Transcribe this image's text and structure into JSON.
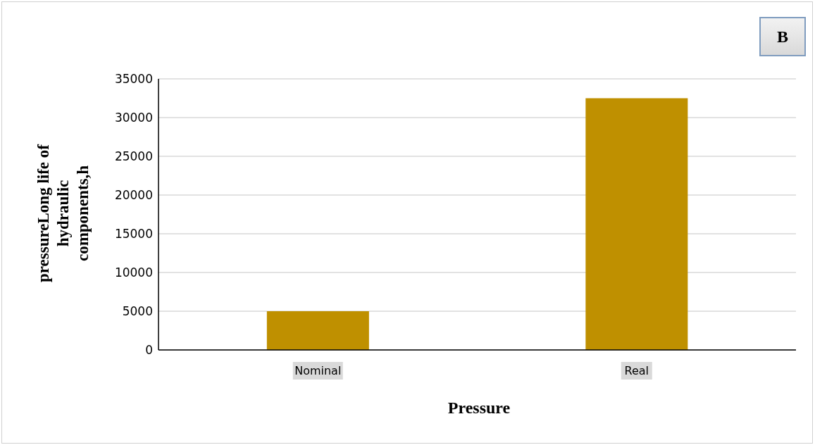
{
  "chart_data": {
    "type": "bar",
    "xlabel": "Pressure",
    "ylabel": "pressureLong life of hydraulic components,h",
    "annotations": [
      "B"
    ],
    "categories": [
      "Nominal",
      "Real"
    ],
    "values": [
      5000,
      32500
    ],
    "color": "#bf9000",
    "ylim": [
      0,
      35000
    ],
    "yticks": [
      0,
      5000,
      10000,
      15000,
      20000,
      25000,
      30000,
      35000
    ],
    "grid": "y"
  }
}
